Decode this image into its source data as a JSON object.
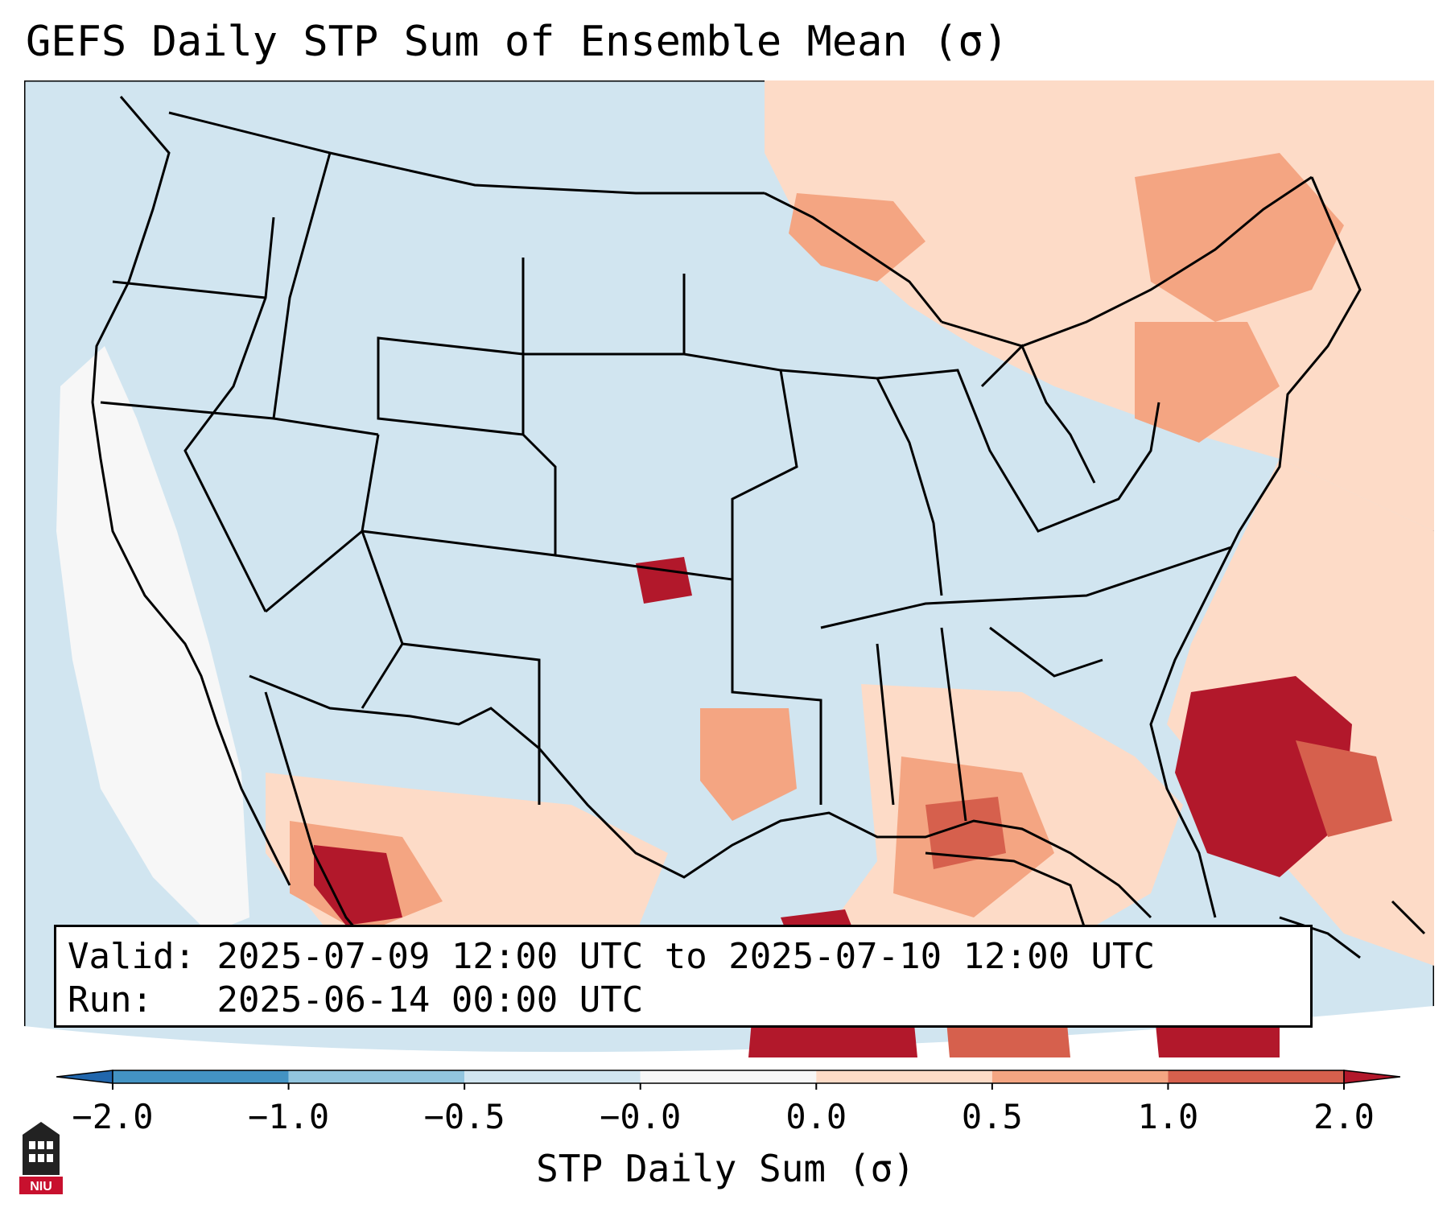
{
  "title": "GEFS Daily STP Sum of Ensemble Mean (σ)",
  "info": {
    "valid_label": "Valid:",
    "valid_value": "2025-07-09 12:00 UTC to 2025-07-10 12:00 UTC",
    "run_label": "Run:",
    "run_value": "2025-06-14 00:00 UTC"
  },
  "colorbar": {
    "label": "STP Daily Sum (σ)",
    "ticks": [
      "−2.0",
      "−1.0",
      "−0.5",
      "−0.0",
      "0.0",
      "0.5",
      "1.0",
      "2.0"
    ],
    "bins": [
      {
        "range": "< -2.0",
        "color": "#2166ac"
      },
      {
        "range": "-2.0 to -1.0",
        "color": "#4393c3"
      },
      {
        "range": "-1.0 to -0.5",
        "color": "#92c5de"
      },
      {
        "range": "-0.5 to -0.0",
        "color": "#d1e5f0"
      },
      {
        "range": "-0.0 to 0.0",
        "color": "#f7f7f7"
      },
      {
        "range": "0.0 to 0.5",
        "color": "#fddbc7"
      },
      {
        "range": "0.5 to 1.0",
        "color": "#f4a582"
      },
      {
        "range": "1.0 to 2.0",
        "color": "#d6604d"
      },
      {
        "range": "> 2.0",
        "color": "#b2182b"
      }
    ]
  },
  "logo": {
    "text": "NIU",
    "icon": "niu-logo-icon"
  },
  "colors": {
    "background": "#d1e5f0",
    "land_lines": "#000000"
  }
}
